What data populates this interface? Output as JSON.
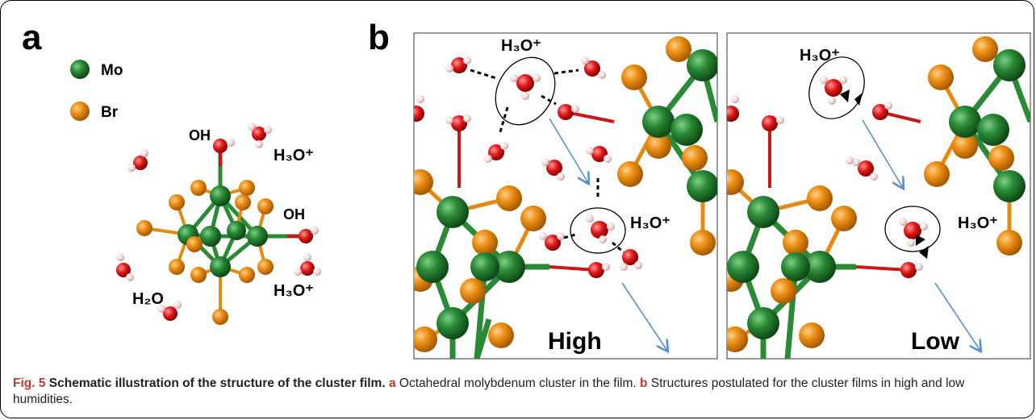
{
  "panel_a": {
    "letter": "a",
    "legend": [
      {
        "label": "Mo",
        "color": "#1f7a2a"
      },
      {
        "label": "Br",
        "color": "#e58a10"
      }
    ],
    "labels": {
      "oh_top": "OH",
      "oh_right": "OH",
      "h3o_top": "H₃O⁺",
      "h3o_bottom": "H₃O⁺",
      "h2o": "H₂O"
    }
  },
  "panel_b": {
    "letter": "b",
    "left": {
      "condition": "High",
      "h3o_top": "H₃O⁺",
      "h3o_mid": "H₃O⁺"
    },
    "right": {
      "condition": "Low",
      "h3o_top": "H₃O⁺",
      "h3o_mid": "H₃O⁺"
    }
  },
  "caption": {
    "fig_label": "Fig. 5",
    "title": "Schematic illustration of the structure of the cluster film.",
    "a_letter": "a",
    "a_text": "Octahedral molybdenum cluster in the film.",
    "b_letter": "b",
    "b_text": "Structures postulated for the cluster films in high and low humidities."
  },
  "colors": {
    "mo": "#1f7a2a",
    "br": "#e58a10",
    "oxygen": "#e01b1b",
    "hydrogen": "#f2d4d4",
    "arrow": "#5b8fd4"
  }
}
